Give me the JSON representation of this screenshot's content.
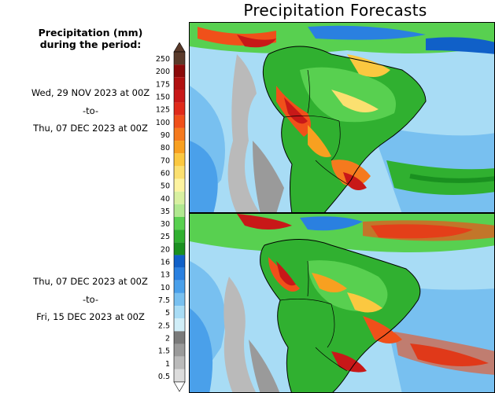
{
  "title": "Precipitation Forecasts",
  "legend": {
    "heading_line1": "Precipitation (mm)",
    "heading_line2": "during the period:",
    "levels": [
      "250",
      "200",
      "175",
      "150",
      "125",
      "100",
      "90",
      "80",
      "70",
      "60",
      "50",
      "40",
      "35",
      "30",
      "25",
      "20",
      "16",
      "13",
      "10",
      "7.5",
      "5",
      "2.5",
      "2",
      "1.5",
      "1",
      "0.5"
    ],
    "colors": [
      "#5a3a2a",
      "#8b0a0a",
      "#b01010",
      "#c81818",
      "#e02a1a",
      "#f0501a",
      "#f57a1e",
      "#f8a020",
      "#fbc840",
      "#fbe070",
      "#fdf3a0",
      "#d8f0a0",
      "#b0e890",
      "#58d050",
      "#30b030",
      "#1a9020",
      "#1060c8",
      "#2a80e0",
      "#4aa0ea",
      "#78c0f0",
      "#a8dcf5",
      "#d0eef8",
      "#7a7a7a",
      "#9a9a9a",
      "#bababa",
      "#dcdcdc"
    ],
    "top_color": "#5a3a2a",
    "bottom_color": "#ffffff"
  },
  "periods": [
    {
      "start": "Wed, 29 NOV 2023 at 00Z",
      "sep": "-to-",
      "end": "Thu, 07 DEC 2023 at 00Z"
    },
    {
      "start": "Thu, 07 DEC 2023 at 00Z",
      "sep": "-to-",
      "end": "Fri, 15 DEC 2023 at 00Z"
    }
  ],
  "maps": [
    {
      "region": "South America",
      "period_index": 0
    },
    {
      "region": "South America",
      "period_index": 1
    }
  ]
}
